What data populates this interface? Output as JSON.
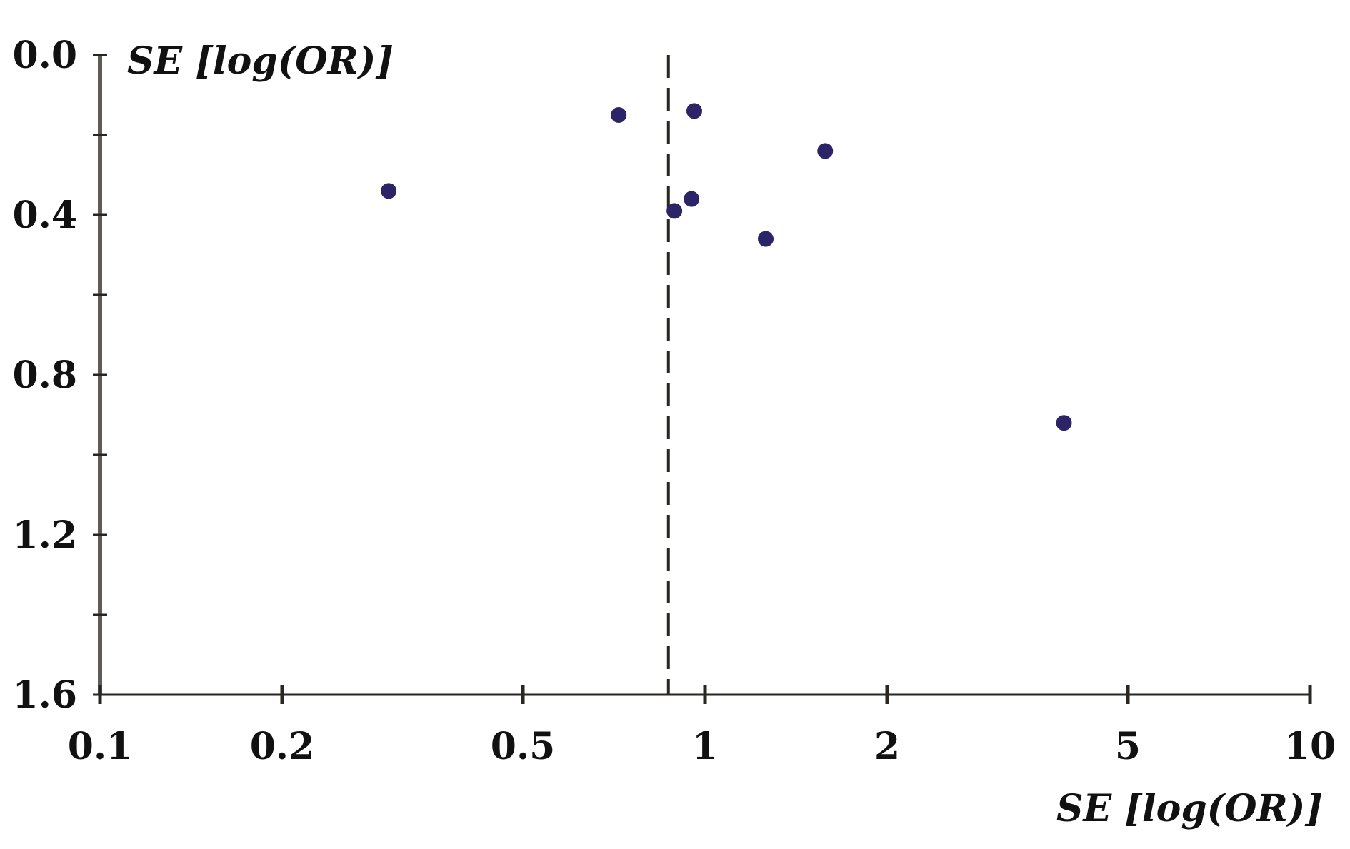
{
  "chart_data": {
    "type": "scatter",
    "title": "",
    "xlabel": "SE [log(OR)]",
    "ylabel": "SE [log(OR)]",
    "x_scale": "log",
    "xlim": [
      0.1,
      10
    ],
    "ylim": [
      0.0,
      1.6
    ],
    "y_inverted": true,
    "x_ticks": [
      0.1,
      0.2,
      0.5,
      1,
      2,
      5,
      10
    ],
    "x_tick_labels": [
      "0.1",
      "0.2",
      "0.5",
      "1",
      "2",
      "5",
      "10"
    ],
    "y_ticks": [
      0.0,
      0.4,
      0.8,
      1.2,
      1.6
    ],
    "y_tick_labels": [
      "0.0",
      "0.4",
      "0.8",
      "1.2",
      "1.6"
    ],
    "y_minor_ticks": [
      0.2,
      0.6,
      1.0,
      1.4
    ],
    "grid": false,
    "reference_line": {
      "x": 0.87,
      "style": "dashed",
      "color": "#2a2622"
    },
    "points": [
      {
        "x": 0.3,
        "y": 0.34
      },
      {
        "x": 0.72,
        "y": 0.15
      },
      {
        "x": 0.96,
        "y": 0.14
      },
      {
        "x": 1.58,
        "y": 0.24
      },
      {
        "x": 0.95,
        "y": 0.36
      },
      {
        "x": 0.89,
        "y": 0.39
      },
      {
        "x": 1.26,
        "y": 0.46
      },
      {
        "x": 3.92,
        "y": 0.92
      }
    ],
    "colors": {
      "point": "#2b2466",
      "y_axis": "#615a55",
      "x_axis": "#2a2622",
      "text": "#111111"
    }
  }
}
